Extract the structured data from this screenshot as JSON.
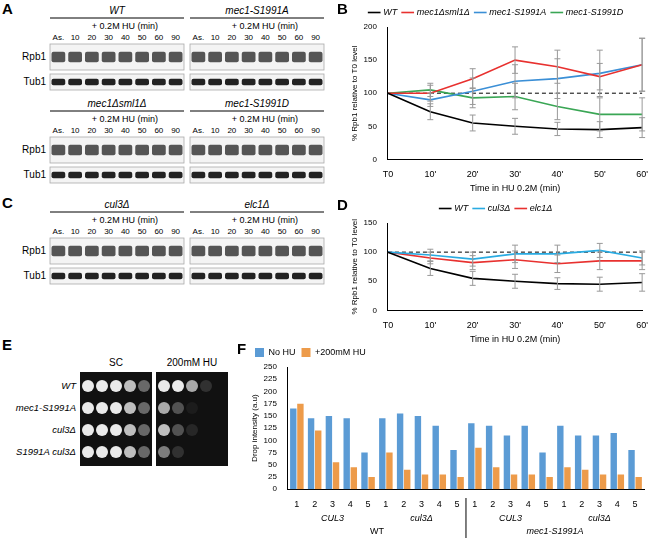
{
  "chart_data": [
    {
      "panel": "B",
      "type": "line",
      "x_label": "Time in HU 0.2M (min)",
      "y_label": "% Rpb1 relative to T0 level",
      "categories": [
        "T0",
        "10'",
        "20'",
        "30'",
        "40'",
        "50'",
        "60'"
      ],
      "ylim": [
        0,
        200
      ],
      "yticks": [
        0,
        50,
        100,
        150,
        200
      ],
      "grid": false,
      "legend": "top",
      "baseline": 100,
      "series": [
        {
          "name": "WT",
          "color": "#000000",
          "values": [
            100,
            72,
            55,
            50,
            46,
            45,
            48
          ],
          "errors": [
            0,
            12,
            12,
            12,
            10,
            12,
            15
          ]
        },
        {
          "name": "mec1Δsml1Δ",
          "color": "#e8312f",
          "values": [
            100,
            100,
            122,
            150,
            140,
            125,
            143
          ],
          "errors": [
            0,
            12,
            15,
            20,
            25,
            20,
            40
          ]
        },
        {
          "name": "mec1-S1991A",
          "color": "#3b8fd6",
          "values": [
            100,
            90,
            103,
            118,
            122,
            130,
            143
          ],
          "errors": [
            0,
            10,
            20,
            25,
            30,
            35,
            40
          ]
        },
        {
          "name": "mec1-S1991D",
          "color": "#3aa655",
          "values": [
            100,
            105,
            93,
            95,
            80,
            68,
            68
          ],
          "errors": [
            0,
            10,
            15,
            20,
            20,
            25,
            25
          ]
        }
      ]
    },
    {
      "panel": "D",
      "type": "line",
      "x_label": "Time in HU 0.2M (min)",
      "y_label": "% Rpb1 relative to T0 level",
      "categories": [
        "T0",
        "10'",
        "20'",
        "30'",
        "40'",
        "50'",
        "60'"
      ],
      "ylim": [
        0,
        150
      ],
      "yticks": [
        0,
        50,
        100,
        150
      ],
      "grid": false,
      "legend": "top",
      "baseline": 100,
      "series": [
        {
          "name": "WT",
          "color": "#000000",
          "values": [
            100,
            72,
            55,
            50,
            46,
            45,
            48
          ],
          "errors": [
            0,
            12,
            12,
            12,
            10,
            12,
            15
          ]
        },
        {
          "name": "cul3Δ",
          "color": "#29abe2",
          "values": [
            100,
            95,
            88,
            97,
            97,
            103,
            90
          ],
          "errors": [
            0,
            10,
            12,
            15,
            15,
            12,
            12
          ]
        },
        {
          "name": "elc1Δ",
          "color": "#e8312f",
          "values": [
            100,
            90,
            82,
            87,
            80,
            85,
            85
          ],
          "errors": [
            0,
            10,
            12,
            15,
            15,
            15,
            15
          ]
        }
      ]
    },
    {
      "panel": "F",
      "type": "bar",
      "y_label": "Drop intensity (a.u)",
      "categories": [
        "1",
        "2",
        "3",
        "4",
        "5",
        "1",
        "2",
        "3",
        "4",
        "5",
        "1",
        "2",
        "3",
        "4",
        "5",
        "1",
        "2",
        "3",
        "4",
        "5"
      ],
      "groups": [
        {
          "label": "WT",
          "subgroups": [
            "CUL3",
            "cul3Δ"
          ]
        },
        {
          "label": "mec1-S1991A",
          "subgroups": [
            "CUL3",
            "cul3Δ"
          ]
        }
      ],
      "ylim": [
        0,
        250
      ],
      "yticks": [
        0,
        25,
        50,
        75,
        100,
        125,
        150,
        175,
        200,
        225,
        250
      ],
      "grid": false,
      "legend": "top left",
      "series": [
        {
          "name": "No HU",
          "color": "#5b9bd5",
          "values": [
            165,
            145,
            150,
            145,
            75,
            145,
            155,
            150,
            130,
            80,
            135,
            130,
            110,
            130,
            75,
            130,
            110,
            110,
            115,
            80
          ]
        },
        {
          "name": "+200mM HU",
          "color": "#ed9b4a",
          "values": [
            175,
            120,
            55,
            45,
            25,
            75,
            40,
            30,
            30,
            25,
            85,
            45,
            30,
            30,
            25,
            45,
            40,
            30,
            30,
            25
          ]
        }
      ]
    }
  ],
  "blots": [
    {
      "panel": "A",
      "treatment": "+ 0.2M HU (min)",
      "lanes": [
        "As.",
        "10",
        "20",
        "30",
        "40",
        "50",
        "60",
        "90"
      ],
      "rows": [
        "Rpb1",
        "Tub1"
      ],
      "strains": [
        "WT",
        "mec1-S1991A",
        "mec1Δsml1Δ",
        "mec1-S1991D"
      ]
    },
    {
      "panel": "C",
      "treatment": "+ 0.2M HU (min)",
      "lanes": [
        "As.",
        "10",
        "20",
        "30",
        "40",
        "50",
        "60",
        "90"
      ],
      "rows": [
        "Rpb1",
        "Tub1"
      ],
      "strains": [
        "cul3Δ",
        "elc1Δ"
      ]
    }
  ],
  "spot_assay": {
    "panel": "E",
    "strains": [
      "WT",
      "mec1-S1991A",
      "cul3Δ",
      "S1991A cul3Δ"
    ],
    "conditions": [
      {
        "name": "SC",
        "growth": [
          [
            1,
            1,
            1,
            0.8,
            0.4
          ],
          [
            1,
            1,
            1,
            0.8,
            0.4
          ],
          [
            1,
            1,
            1,
            0.8,
            0.4
          ],
          [
            1,
            1,
            1,
            0.8,
            0.4
          ]
        ]
      },
      {
        "name": "200mM HU",
        "growth": [
          [
            1,
            1,
            0.7,
            0.15,
            0
          ],
          [
            0.7,
            0.3,
            0.05,
            0,
            0
          ],
          [
            0.8,
            0.3,
            0.1,
            0,
            0
          ],
          [
            0.5,
            0.15,
            0,
            0,
            0
          ]
        ]
      }
    ]
  }
}
